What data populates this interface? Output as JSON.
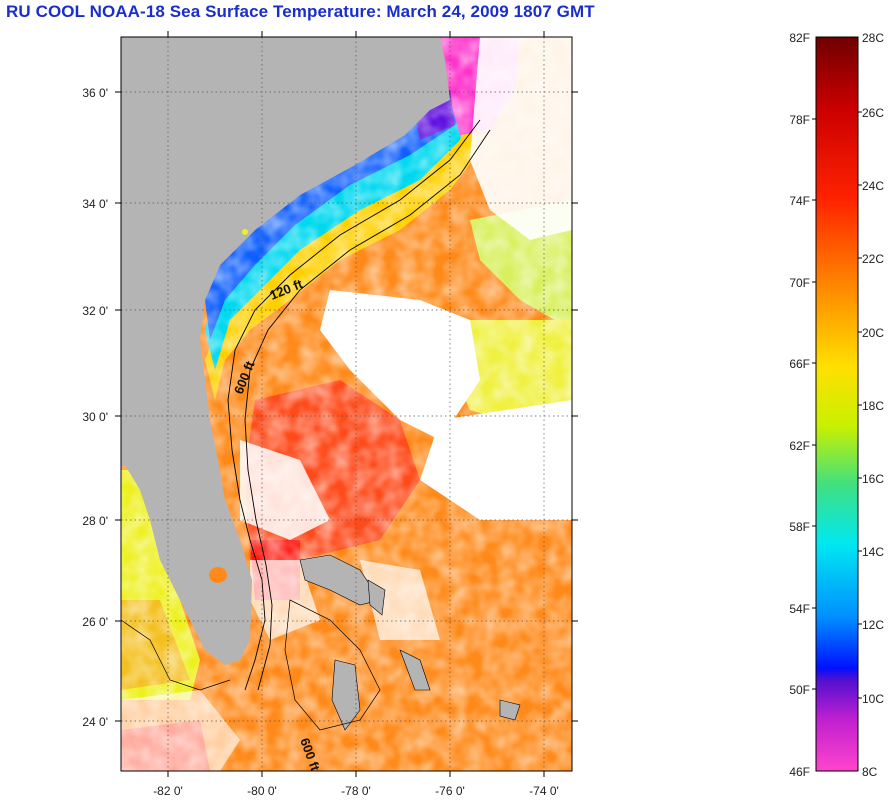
{
  "title": "RU COOL  NOAA-18  Sea Surface Temperature:  March 24, 2009 1807 GMT",
  "map": {
    "lat_ticks": [
      "36 0'",
      "34 0'",
      "32 0'",
      "30 0'",
      "28 0'",
      "26 0'",
      "24 0'"
    ],
    "lon_ticks": [
      "-82 0'",
      "-80 0'",
      "-78 0'",
      "-76 0'",
      "-74 0'"
    ],
    "contour_labels": [
      "120 ft",
      "600 ft",
      "600 ft"
    ],
    "colors": {
      "land": "#b4b4b4",
      "cloud": "#ffffff"
    }
  },
  "colorbar": {
    "fahrenheit": [
      "82F",
      "78F",
      "74F",
      "70F",
      "66F",
      "62F",
      "58F",
      "54F",
      "50F",
      "46F"
    ],
    "celsius": [
      "28C",
      "26C",
      "24C",
      "22C",
      "20C",
      "18C",
      "16C",
      "14C",
      "12C",
      "10C",
      "8C"
    ],
    "colors": [
      "#7a0000",
      "#cc0000",
      "#ff2a00",
      "#ff7a00",
      "#ffd000",
      "#ffff00",
      "#7fe000",
      "#00e0b0",
      "#00e0ff",
      "#0090ff",
      "#0000ff",
      "#6a00c8",
      "#ff33cc"
    ]
  }
}
